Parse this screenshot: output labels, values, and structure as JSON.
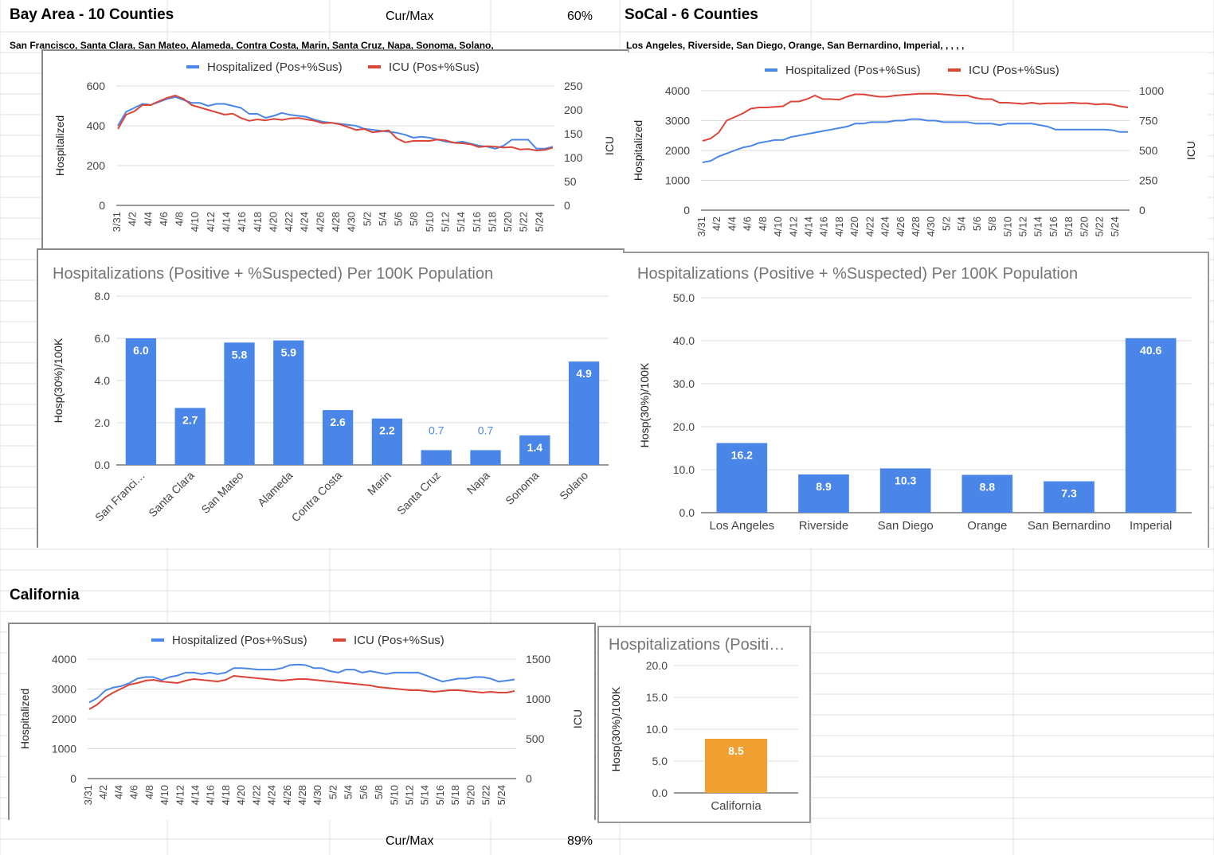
{
  "colors": {
    "hospitalized": "#4a86e8",
    "icu": "#db4437",
    "bar": "#4a86e8",
    "bar_state": "#f0a030",
    "gridline": "#dcdcdc",
    "sheet_grid": "#e2e2e2"
  },
  "bay_area": {
    "title": "Bay Area - 10 Counties",
    "ratio_label": "Cur/Max",
    "ratio_value": "60%",
    "counties": "San Francisco, Santa Clara, San Mateo, Alameda, Contra Costa, Marin, Santa Cruz, Napa, Sonoma, Solano,"
  },
  "socal": {
    "title": "SoCal - 6 Counties",
    "counties": "Los Angeles, Riverside, San Diego, Orange, San Bernardino, Imperial, , , , ,"
  },
  "california": {
    "title": "California",
    "ratio_label": "Cur/Max",
    "ratio_value": "89%"
  },
  "chart_data": [
    {
      "id": "bay_line",
      "type": "line",
      "legend": [
        "Hospitalized (Pos+%Sus)",
        "ICU (Pos+%Sus)"
      ],
      "ylabel": "Hospitalized",
      "y2label": "ICU",
      "ylim": [
        0,
        600
      ],
      "y2lim": [
        0,
        250
      ],
      "yticks": [
        "0",
        "200",
        "400",
        "600"
      ],
      "y2ticks": [
        "0",
        "50",
        "100",
        "150",
        "200",
        "250"
      ],
      "xticks": [
        "3/31",
        "4/2",
        "4/4",
        "4/6",
        "4/8",
        "4/10",
        "4/12",
        "4/14",
        "4/16",
        "4/18",
        "4/20",
        "4/22",
        "4/24",
        "4/26",
        "4/28",
        "4/30",
        "5/2",
        "5/4",
        "5/6",
        "5/8",
        "5/10",
        "5/12",
        "5/14",
        "5/16",
        "5/18",
        "5/20",
        "5/22",
        "5/24"
      ],
      "series": [
        {
          "name": "Hospitalized (Pos+%Sus)",
          "axis": "left",
          "values": [
            400,
            470,
            490,
            510,
            505,
            520,
            535,
            545,
            530,
            515,
            515,
            500,
            510,
            510,
            500,
            490,
            460,
            460,
            440,
            450,
            465,
            455,
            450,
            445,
            430,
            420,
            415,
            410,
            405,
            400,
            385,
            380,
            375,
            370,
            365,
            355,
            340,
            345,
            340,
            330,
            320,
            315,
            320,
            310,
            300,
            295,
            285,
            300,
            330,
            330,
            330,
            285,
            285,
            295
          ]
        },
        {
          "name": "ICU (Pos+%Sus)",
          "axis": "right",
          "values": [
            160,
            190,
            197,
            210,
            210,
            218,
            225,
            230,
            223,
            210,
            205,
            200,
            195,
            190,
            192,
            183,
            177,
            180,
            178,
            181,
            179,
            182,
            183,
            180,
            177,
            172,
            173,
            170,
            164,
            158,
            160,
            153,
            155,
            157,
            140,
            132,
            135,
            135,
            135,
            138,
            136,
            131,
            130,
            128,
            122,
            124,
            123,
            121,
            122,
            117,
            118,
            115,
            116,
            121
          ]
        }
      ]
    },
    {
      "id": "socal_line",
      "type": "line",
      "legend": [
        "Hospitalized (Pos+%Sus)",
        "ICU (Pos+%Sus)"
      ],
      "ylabel": "Hospitalized",
      "y2label": "ICU",
      "ylim": [
        0,
        4000
      ],
      "y2lim": [
        0,
        1000
      ],
      "yticks": [
        "0",
        "1000",
        "2000",
        "3000",
        "4000"
      ],
      "y2ticks": [
        "0",
        "250",
        "500",
        "750",
        "1000"
      ],
      "xticks": [
        "3/31",
        "4/2",
        "4/4",
        "4/6",
        "4/8",
        "4/10",
        "4/12",
        "4/14",
        "4/16",
        "4/18",
        "4/20",
        "4/22",
        "4/24",
        "4/26",
        "4/28",
        "4/30",
        "5/2",
        "5/4",
        "5/6",
        "5/8",
        "5/10",
        "5/12",
        "5/14",
        "5/16",
        "5/18",
        "5/20",
        "5/22",
        "5/24"
      ],
      "series": [
        {
          "name": "Hospitalized (Pos+%Sus)",
          "axis": "left",
          "values": [
            1600,
            1650,
            1800,
            1900,
            2000,
            2100,
            2150,
            2250,
            2300,
            2350,
            2350,
            2450,
            2500,
            2550,
            2600,
            2650,
            2700,
            2750,
            2800,
            2900,
            2900,
            2950,
            2950,
            2950,
            3000,
            3000,
            3050,
            3050,
            3000,
            3000,
            2950,
            2950,
            2950,
            2950,
            2900,
            2900,
            2900,
            2850,
            2900,
            2900,
            2900,
            2900,
            2850,
            2800,
            2700,
            2700,
            2700,
            2700,
            2700,
            2700,
            2700,
            2680,
            2620,
            2620
          ]
        },
        {
          "name": "ICU (Pos+%Sus)",
          "axis": "right",
          "values": [
            580,
            600,
            650,
            750,
            780,
            810,
            850,
            860,
            860,
            865,
            870,
            910,
            910,
            930,
            960,
            930,
            930,
            925,
            950,
            970,
            970,
            960,
            950,
            950,
            960,
            965,
            970,
            975,
            975,
            975,
            970,
            965,
            960,
            960,
            940,
            930,
            930,
            900,
            900,
            895,
            890,
            900,
            890,
            895,
            895,
            895,
            900,
            895,
            895,
            885,
            890,
            885,
            870,
            860
          ]
        }
      ]
    },
    {
      "id": "bay_bar",
      "type": "bar",
      "title": "Hospitalizations (Positive + %Suspected) Per 100K Population",
      "ylabel": "Hosp(30%)/100K",
      "ylim": [
        0,
        8
      ],
      "yticks": [
        "0.0",
        "2.0",
        "4.0",
        "6.0",
        "8.0"
      ],
      "categories": [
        "San Franci…",
        "Santa Clara",
        "San Mateo",
        "Alameda",
        "Contra Costa",
        "Marin",
        "Santa Cruz",
        "Napa",
        "Sonoma",
        "Solano"
      ],
      "values": [
        6.0,
        2.7,
        5.8,
        5.9,
        2.6,
        2.2,
        0.7,
        0.7,
        1.4,
        4.9
      ],
      "labels": [
        "6.0",
        "2.7",
        "5.8",
        "5.9",
        "2.6",
        "2.2",
        "0.7",
        "0.7",
        "1.4",
        "4.9"
      ]
    },
    {
      "id": "socal_bar",
      "type": "bar",
      "title": "Hospitalizations (Positive + %Suspected) Per 100K Population",
      "ylabel": "Hosp(30%)/100K",
      "ylim": [
        0,
        50
      ],
      "yticks": [
        "0.0",
        "10.0",
        "20.0",
        "30.0",
        "40.0",
        "50.0"
      ],
      "categories": [
        "Los Angeles",
        "Riverside",
        "San Diego",
        "Orange",
        "San Bernardino",
        "Imperial"
      ],
      "values": [
        16.2,
        8.9,
        10.3,
        8.8,
        7.3,
        40.6
      ],
      "labels": [
        "16.2",
        "8.9",
        "10.3",
        "8.8",
        "7.3",
        "40.6"
      ]
    },
    {
      "id": "ca_line",
      "type": "line",
      "legend": [
        "Hospitalized (Pos+%Sus)",
        "ICU (Pos+%Sus)"
      ],
      "ylabel": "Hospitalized",
      "y2label": "ICU",
      "ylim": [
        0,
        4000
      ],
      "y2lim": [
        0,
        1500
      ],
      "yticks": [
        "0",
        "1000",
        "2000",
        "3000",
        "4000"
      ],
      "y2ticks": [
        "0",
        "500",
        "1000",
        "1500"
      ],
      "xticks": [
        "3/31",
        "4/2",
        "4/4",
        "4/6",
        "4/8",
        "4/10",
        "4/12",
        "4/14",
        "4/16",
        "4/18",
        "4/20",
        "4/22",
        "4/24",
        "4/26",
        "4/28",
        "4/30",
        "5/2",
        "5/4",
        "5/6",
        "5/8",
        "5/10",
        "5/12",
        "5/14",
        "5/16",
        "5/18",
        "5/20",
        "5/22",
        "5/24"
      ],
      "series": [
        {
          "name": "Hospitalized (Pos+%Sus)",
          "axis": "left",
          "values": [
            2550,
            2700,
            2950,
            3050,
            3100,
            3200,
            3350,
            3400,
            3400,
            3300,
            3400,
            3450,
            3550,
            3550,
            3500,
            3550,
            3500,
            3550,
            3700,
            3700,
            3680,
            3650,
            3650,
            3650,
            3700,
            3800,
            3820,
            3800,
            3700,
            3700,
            3600,
            3550,
            3650,
            3650,
            3550,
            3600,
            3550,
            3500,
            3550,
            3550,
            3550,
            3550,
            3450,
            3350,
            3250,
            3300,
            3350,
            3350,
            3400,
            3400,
            3350,
            3250,
            3280,
            3320
          ]
        },
        {
          "name": "ICU (Pos+%Sus)",
          "axis": "right",
          "values": [
            870,
            930,
            1020,
            1080,
            1130,
            1180,
            1200,
            1230,
            1240,
            1220,
            1210,
            1200,
            1230,
            1250,
            1240,
            1230,
            1220,
            1240,
            1290,
            1280,
            1270,
            1260,
            1250,
            1240,
            1230,
            1240,
            1250,
            1250,
            1240,
            1230,
            1220,
            1210,
            1200,
            1190,
            1180,
            1170,
            1150,
            1140,
            1130,
            1120,
            1110,
            1110,
            1100,
            1090,
            1100,
            1110,
            1110,
            1100,
            1090,
            1080,
            1090,
            1080,
            1080,
            1100
          ]
        }
      ]
    },
    {
      "id": "ca_bar",
      "type": "bar",
      "title": "Hospitalizations (Positi…",
      "ylabel": "Hosp(30%)/100K",
      "ylim": [
        0,
        20
      ],
      "yticks": [
        "0.0",
        "5.0",
        "10.0",
        "15.0",
        "20.0"
      ],
      "categories": [
        "California"
      ],
      "values": [
        8.5
      ],
      "labels": [
        "8.5"
      ]
    }
  ]
}
